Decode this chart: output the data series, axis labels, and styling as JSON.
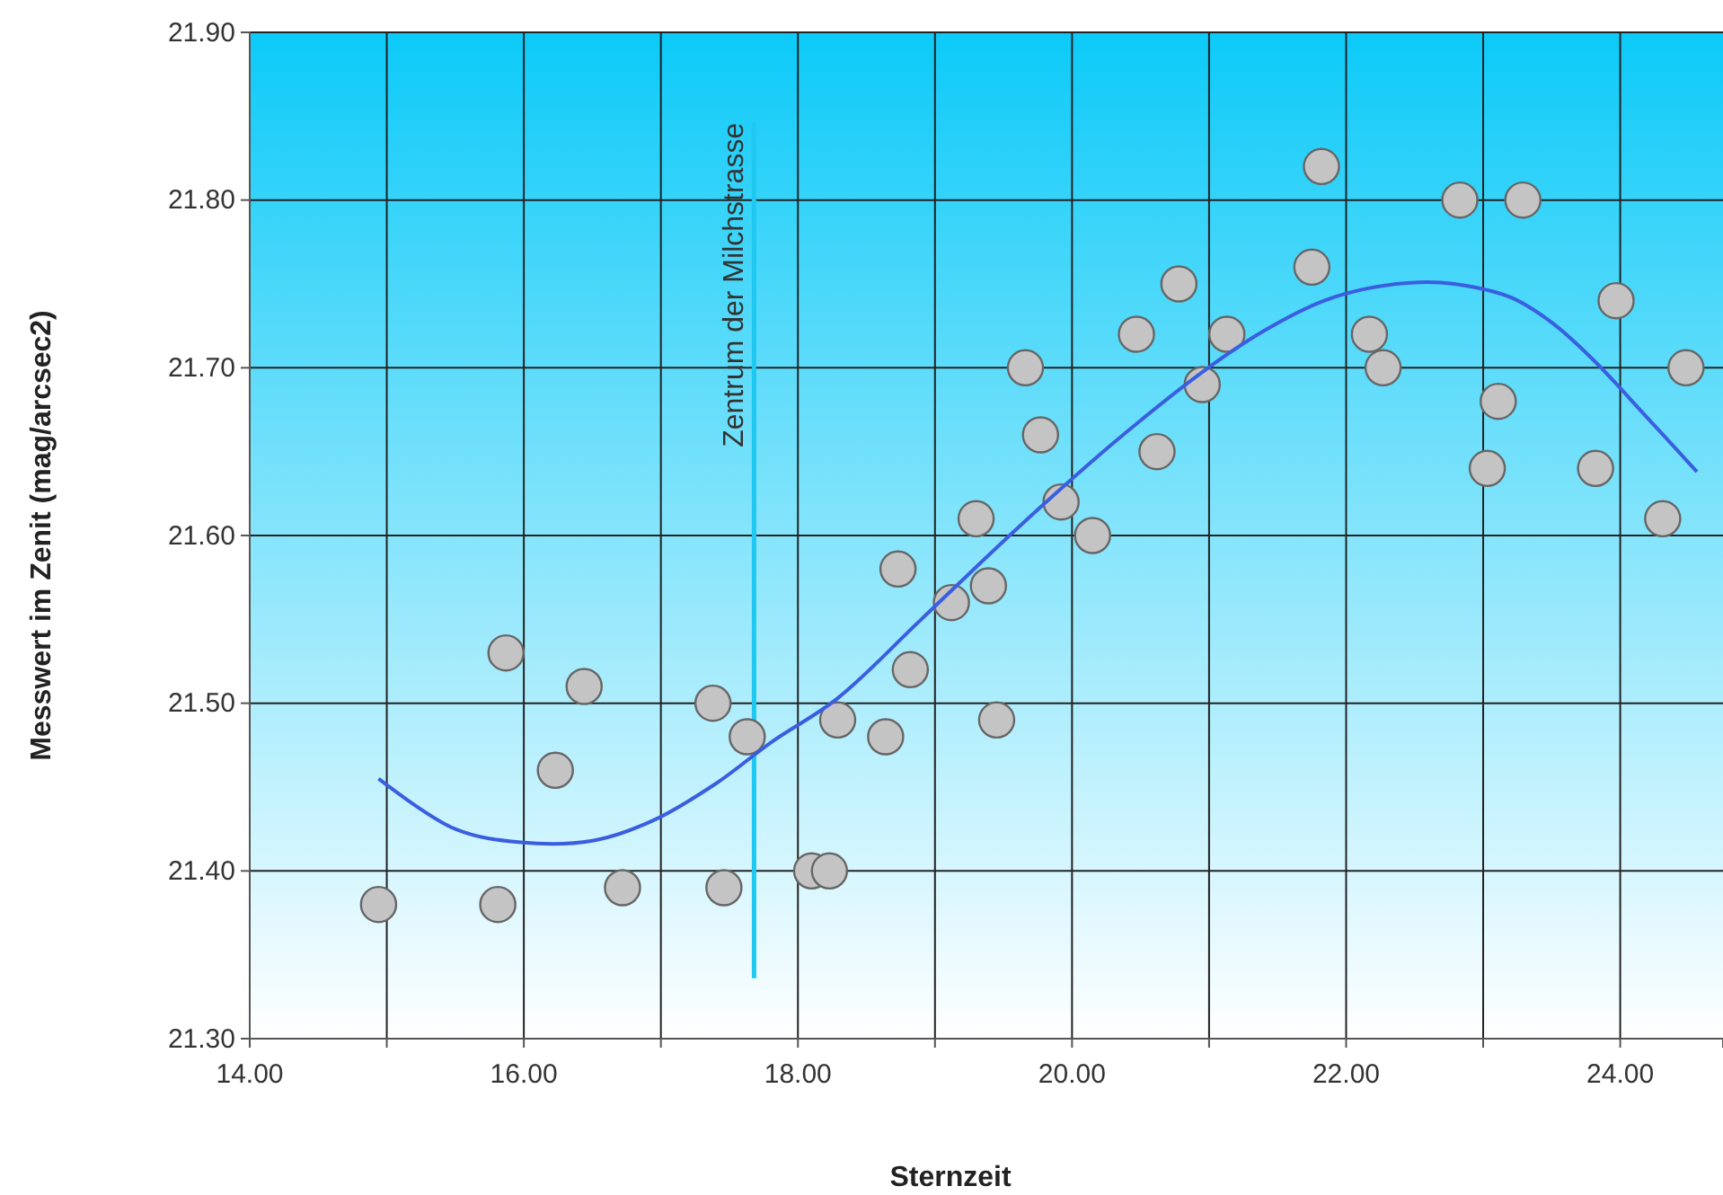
{
  "chart_data": {
    "type": "scatter",
    "xlabel": "Sternzeit",
    "ylabel": "Messwert im Zenit (mag/arcsec2)",
    "xlim": [
      14,
      24.75
    ],
    "ylim": [
      21.3,
      21.9
    ],
    "xticks": [
      {
        "value": 14,
        "label": "14.00"
      },
      {
        "value": 15,
        "label": null
      },
      {
        "value": 16,
        "label": "16.00"
      },
      {
        "value": 17,
        "label": null
      },
      {
        "value": 18,
        "label": "18.00"
      },
      {
        "value": 19,
        "label": null
      },
      {
        "value": 20,
        "label": "20.00"
      },
      {
        "value": 21,
        "label": null
      },
      {
        "value": 22,
        "label": "22.00"
      },
      {
        "value": 23,
        "label": null
      },
      {
        "value": 24,
        "label": "24.00"
      }
    ],
    "yticks": [
      {
        "value": 21.3,
        "label": "21.30"
      },
      {
        "value": 21.4,
        "label": "21.40"
      },
      {
        "value": 21.5,
        "label": "21.50"
      },
      {
        "value": 21.6,
        "label": "21.60"
      },
      {
        "value": 21.7,
        "label": "21.70"
      },
      {
        "value": 21.8,
        "label": "21.80"
      },
      {
        "value": 21.9,
        "label": "21.90"
      }
    ],
    "grid": true,
    "marker": "circle",
    "series": [
      {
        "color": "#c4c4c4",
        "x": [
          14.94,
          15.81,
          15.87,
          16.23,
          16.44,
          16.72,
          17.38,
          17.46,
          17.63,
          18.1,
          18.23,
          18.29,
          18.64,
          18.73,
          18.82,
          19.12,
          19.3,
          19.39,
          19.45,
          19.66,
          19.77,
          19.92,
          20.15,
          20.47,
          20.62,
          20.78,
          20.95,
          21.13,
          21.75,
          21.82,
          22.17,
          22.27,
          22.83,
          23.03,
          23.11,
          23.29,
          23.82,
          23.97,
          24.31,
          24.48
        ],
        "values": [
          21.38,
          21.38,
          21.53,
          21.46,
          21.51,
          21.39,
          21.5,
          21.39,
          21.48,
          21.4,
          21.4,
          21.49,
          21.48,
          21.58,
          21.52,
          21.56,
          21.61,
          21.57,
          21.49,
          21.7,
          21.66,
          21.62,
          21.6,
          21.72,
          21.65,
          21.75,
          21.69,
          21.72,
          21.76,
          21.82,
          21.72,
          21.7,
          21.8,
          21.64,
          21.68,
          21.8,
          21.64,
          21.74,
          21.61,
          21.7
        ]
      },
      {
        "type": "line",
        "color": "#3a5ee0",
        "marker": "none",
        "x": [
          14.94,
          15.5,
          15.98,
          16.5,
          16.94,
          17.4,
          17.81,
          18.29,
          18.9,
          19.61,
          20.3,
          20.96,
          21.4,
          21.84,
          22.2,
          22.53,
          22.79,
          23.2,
          23.5,
          23.8,
          24.2,
          24.56
        ],
        "values": [
          21.455,
          21.425,
          21.417,
          21.418,
          21.43,
          21.452,
          21.477,
          21.503,
          21.55,
          21.605,
          21.655,
          21.698,
          21.722,
          21.74,
          21.748,
          21.751,
          21.75,
          21.742,
          21.727,
          21.705,
          21.67,
          21.638
        ]
      }
    ],
    "ref_lines": [
      {
        "axis": "x",
        "value": 17.68,
        "label": "Zentrum der Milchstrasse",
        "color": "#1ec8f0"
      }
    ]
  }
}
